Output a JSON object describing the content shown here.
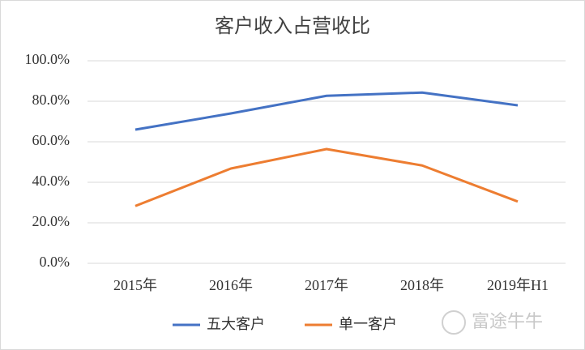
{
  "chart_data": {
    "type": "line",
    "title": "客户收入占营收比",
    "categories": [
      "2015年",
      "2016年",
      "2017年",
      "2018年",
      "2019年H1"
    ],
    "series": [
      {
        "name": "五大客户",
        "color": "#4472c4",
        "values": [
          66.0,
          74.0,
          82.7,
          84.3,
          78.0
        ]
      },
      {
        "name": "单一客户",
        "color": "#ed7d31",
        "values": [
          28.3,
          46.8,
          56.4,
          48.3,
          30.5
        ]
      }
    ],
    "ylim": [
      0,
      100
    ],
    "yticks": [
      {
        "value": 0,
        "label": "0.0%"
      },
      {
        "value": 20,
        "label": "20.0%"
      },
      {
        "value": 40,
        "label": "40.0%"
      },
      {
        "value": 60,
        "label": "60.0%"
      },
      {
        "value": 80,
        "label": "80.0%"
      },
      {
        "value": 100,
        "label": "100.0%"
      }
    ],
    "grid": true,
    "legend": "bottom",
    "watermark": "富途牛牛"
  }
}
